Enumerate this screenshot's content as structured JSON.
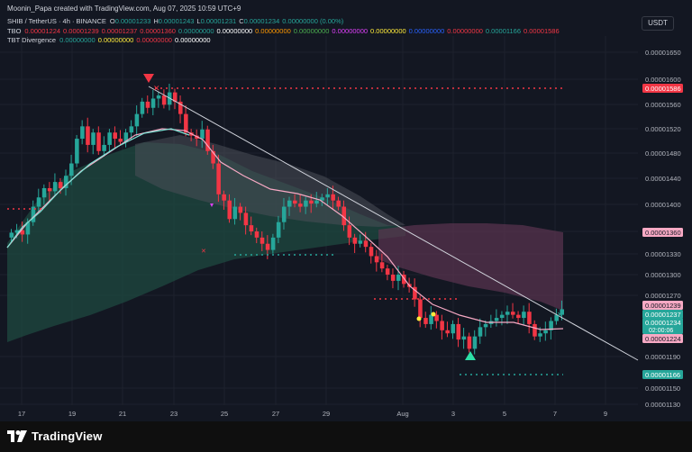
{
  "header": {
    "attribution": "Moonin_Papa created with TradingView.com, Aug 07, 2025 10:59 UTC+9",
    "currency_button": "USDT"
  },
  "legend": {
    "symbol_line": {
      "prefix": "SHIB / TetherUS · 4h · BINANCE",
      "ohlc": [
        {
          "label": "O",
          "value": "0.00001233"
        },
        {
          "label": "H",
          "value": "0.00001243"
        },
        {
          "label": "L",
          "value": "0.00001231"
        },
        {
          "label": "C",
          "value": "0.00001234"
        }
      ],
      "change": "0.00000000 (0.00%)",
      "color": "#26a69a"
    },
    "tbo": {
      "label": "TBO",
      "values": [
        {
          "text": "0.00001224",
          "color": "#f23645"
        },
        {
          "text": "0.00001239",
          "color": "#f23645"
        },
        {
          "text": "0.00001237",
          "color": "#f23645"
        },
        {
          "text": "0.00001360",
          "color": "#f23645"
        },
        {
          "text": "0.00000000",
          "color": "#26a69a"
        },
        {
          "text": "0.00000000",
          "color": "#ffffff"
        },
        {
          "text": "0.00000000",
          "color": "#ff9800"
        },
        {
          "text": "0.00000000",
          "color": "#4caf50"
        },
        {
          "text": "0.00000000",
          "color": "#e040fb"
        },
        {
          "text": "0.00000000",
          "color": "#ffeb3b"
        },
        {
          "text": "0.00000000",
          "color": "#2962ff"
        },
        {
          "text": "0.00000000",
          "color": "#f23645"
        },
        {
          "text": "0.00001166",
          "color": "#26a69a"
        },
        {
          "text": "0.00001586",
          "color": "#f23645"
        }
      ]
    },
    "tbt": {
      "label": "TBT Divergence",
      "values": [
        {
          "text": "0.00000000",
          "color": "#26a69a"
        },
        {
          "text": "0.00000000",
          "color": "#ffeb3b"
        },
        {
          "text": "0.00000000",
          "color": "#f23645"
        },
        {
          "text": "0.00000000",
          "color": "#ffffff"
        }
      ]
    }
  },
  "price_axis": {
    "ticks": [
      "0.00001650",
      "0.00001600",
      "0.00001560",
      "0.00001520",
      "0.00001480",
      "0.00001440",
      "0.00001400",
      "0.00001360",
      "0.00001330",
      "0.00001300",
      "0.00001270",
      "0.00001239",
      "0.00001237",
      "0.00001234",
      "0.00001224",
      "0.00001190",
      "0.00001166",
      "0.00001150",
      "0.00001130"
    ],
    "badges": [
      {
        "text": "0.00001586",
        "bg": "#f23645",
        "fg": "#ffffff"
      },
      {
        "text": "0.00001360",
        "bg": "#f7a9c4",
        "fg": "#131722"
      },
      {
        "text": "0.00001239",
        "bg": "#f7a9c4",
        "fg": "#131722"
      },
      {
        "text": "0.00001237",
        "bg": "#26a69a",
        "fg": "#ffffff"
      },
      {
        "text": "0.00001234",
        "sub": "02:00:06",
        "bg": "#26a69a",
        "fg": "#ffffff"
      },
      {
        "text": "0.00001224",
        "bg": "#f7a9c4",
        "fg": "#131722"
      },
      {
        "text": "0.00001166",
        "bg": "#26a69a",
        "fg": "#ffffff"
      }
    ]
  },
  "time_axis": {
    "labels": [
      "17",
      "19",
      "21",
      "23",
      "25",
      "27",
      "29",
      "Aug",
      "3",
      "5",
      "7",
      "9"
    ]
  },
  "colors": {
    "background": "#131722",
    "up": "#26a69a",
    "down": "#f23645",
    "grid": "#1e222d",
    "trendline": "#d1d4dc"
  },
  "footer": {
    "brand": "TradingView",
    "logo_icon": "tradingview-logo-icon"
  }
}
